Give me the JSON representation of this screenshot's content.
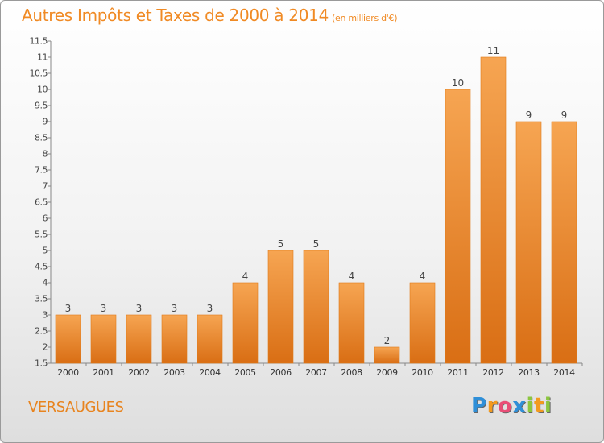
{
  "chart_data": {
    "type": "bar",
    "title": "Autres Impôts et Taxes de 2000 à 2014",
    "unit": "(en milliers d'€)",
    "categories": [
      "2000",
      "2001",
      "2002",
      "2003",
      "2004",
      "2005",
      "2006",
      "2007",
      "2008",
      "2009",
      "2010",
      "2011",
      "2012",
      "2013",
      "2014"
    ],
    "values": [
      3,
      3,
      3,
      3,
      3,
      4,
      5,
      5,
      4,
      2,
      4,
      10,
      11,
      9,
      9
    ],
    "ylim": [
      1.5,
      11.5
    ],
    "ytick_step": 0.5,
    "grid": false,
    "bar_color": "#f0902a"
  },
  "place_name": "VERSAUGUES",
  "logo": {
    "letters": [
      {
        "ch": "P",
        "color": "#2f8fd8"
      },
      {
        "ch": "r",
        "color": "#f39a1e"
      },
      {
        "ch": "o",
        "color": "#e94e77"
      },
      {
        "ch": "x",
        "color": "#2f8fd8"
      },
      {
        "ch": "i",
        "color": "#8cc63f"
      },
      {
        "ch": "t",
        "color": "#f39a1e"
      },
      {
        "ch": "i",
        "color": "#8cc63f"
      }
    ]
  }
}
